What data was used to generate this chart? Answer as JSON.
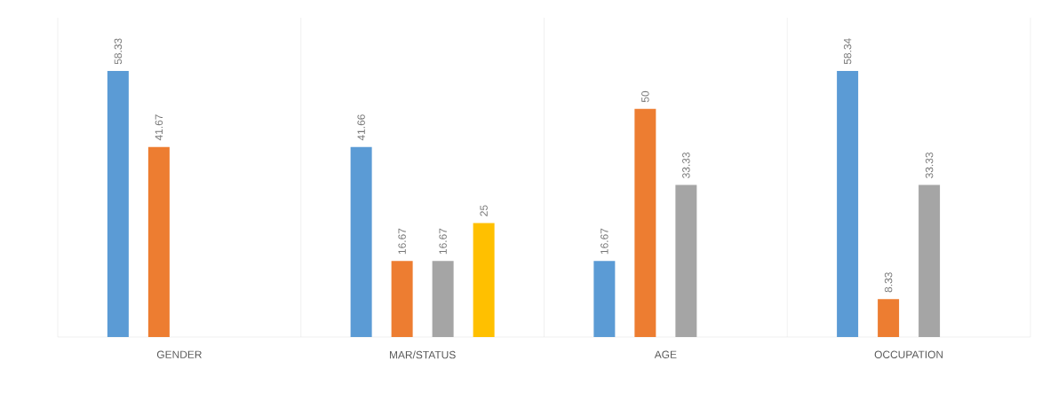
{
  "chart_data": {
    "type": "bar",
    "categories": [
      "GENDER",
      "MAR/STATUS",
      "AGE",
      "OCCUPATION"
    ],
    "series": [
      {
        "color": "#5b9bd5",
        "values": [
          58.33,
          41.66,
          16.67,
          58.34
        ]
      },
      {
        "color": "#ed7d31",
        "values": [
          41.67,
          16.67,
          50,
          8.33
        ]
      },
      {
        "color": "#a5a5a5",
        "values": [
          null,
          16.67,
          33.33,
          33.33
        ]
      },
      {
        "color": "#ffc000",
        "values": [
          null,
          25,
          null,
          null
        ]
      }
    ],
    "data_labels": true,
    "grid": "x"
  }
}
